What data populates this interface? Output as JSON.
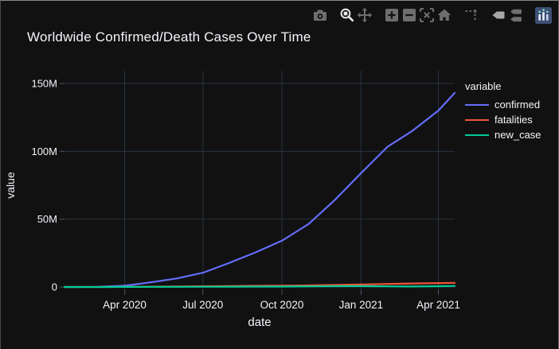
{
  "title": "Worldwide Confirmed/Death Cases Over Time",
  "colors": {
    "background": "#111111",
    "grid": "#283442",
    "tick_mark": "#4a5668",
    "text": "#f2f5fa",
    "modebar_icon": "#6e6e6e",
    "modebar_active": "#e8e8e8",
    "plotly_logo_bg": "#3f4f75"
  },
  "modebar": {
    "active_tool": "zoom",
    "icons": [
      "camera-icon",
      "zoom-icon",
      "pan-icon",
      "zoom-in-icon",
      "zoom-out-icon",
      "autoscale-icon",
      "home-icon",
      "spikelines-icon",
      "closest-hover-icon",
      "compare-hover-icon",
      "plotly-logo-icon"
    ]
  },
  "chart_data": {
    "type": "line",
    "title": "Worldwide Confirmed/Death Cases Over Time",
    "xlabel": "date",
    "ylabel": "value",
    "legend_title": "variable",
    "legend_position": "right",
    "grid": true,
    "x_range": [
      "2020-01-22",
      "2021-04-20"
    ],
    "y_range_millions": [
      0,
      150
    ],
    "y_ticks": [
      {
        "value": 0,
        "label": "0"
      },
      {
        "value": 50,
        "label": "50M"
      },
      {
        "value": 100,
        "label": "100M"
      },
      {
        "value": 150,
        "label": "150M"
      }
    ],
    "x_ticks": [
      {
        "date": "2020-04-01",
        "label": "Apr 2020"
      },
      {
        "date": "2020-07-01",
        "label": "Jul 2020"
      },
      {
        "date": "2020-10-01",
        "label": "Oct 2020"
      },
      {
        "date": "2021-01-01",
        "label": "Jan 2021"
      },
      {
        "date": "2021-04-01",
        "label": "Apr 2021"
      }
    ],
    "x": [
      "2020-01-22",
      "2020-02-01",
      "2020-03-01",
      "2020-04-01",
      "2020-05-01",
      "2020-06-01",
      "2020-07-01",
      "2020-08-01",
      "2020-09-01",
      "2020-10-01",
      "2020-11-01",
      "2020-12-01",
      "2021-01-01",
      "2021-02-01",
      "2021-03-01",
      "2021-04-01",
      "2021-04-20"
    ],
    "units": "millions",
    "series": [
      {
        "name": "confirmed",
        "color": "#636efa",
        "values": [
          0.001,
          0.011,
          0.088,
          0.93,
          3.4,
          6.3,
          10.5,
          17.8,
          25.7,
          34.1,
          46.4,
          63.8,
          83.9,
          103.4,
          114.7,
          130.0,
          143.0
        ]
      },
      {
        "name": "fatalities",
        "color": "#ef553b",
        "values": [
          0.0,
          0.001,
          0.003,
          0.047,
          0.24,
          0.38,
          0.51,
          0.68,
          0.85,
          1.01,
          1.2,
          1.48,
          1.83,
          2.24,
          2.55,
          2.85,
          3.05
        ]
      },
      {
        "name": "new_case",
        "color": "#00cc96",
        "values": [
          0.0,
          0.002,
          0.002,
          0.073,
          0.09,
          0.11,
          0.18,
          0.26,
          0.27,
          0.31,
          0.49,
          0.58,
          0.67,
          0.44,
          0.38,
          0.6,
          0.79
        ]
      }
    ]
  }
}
